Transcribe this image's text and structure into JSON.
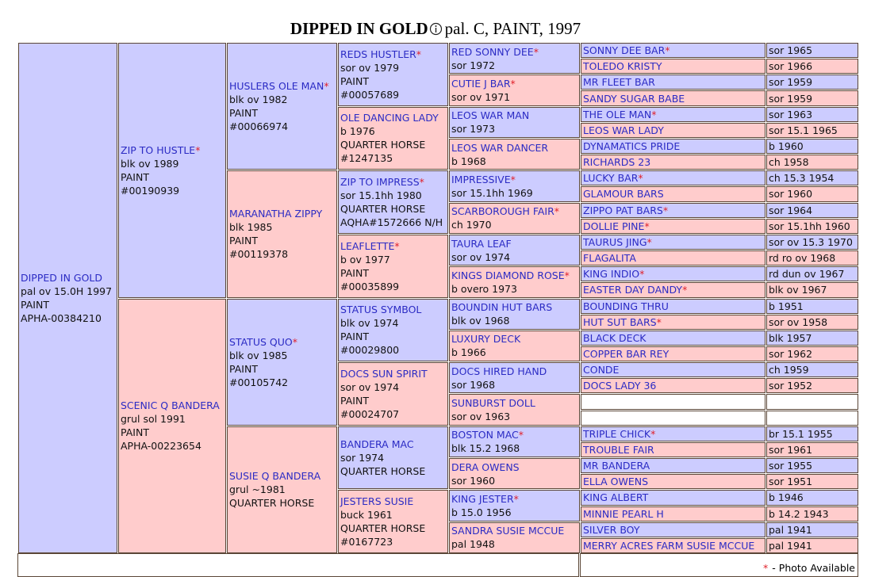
{
  "title": "DIPPED IN GOLD",
  "subtitle": "pal. C, PAINT, 1997",
  "pedigree": {
    "gen1": [
      {
        "name": "DIPPED IN GOLD",
        "lines": [
          "pal ov 15.0H 1997",
          "PAINT",
          "APHA-00384210"
        ]
      }
    ],
    "gen2": [
      {
        "name": "ZIP TO HUSTLE",
        "mark": "*",
        "lines": [
          "blk ov 1989",
          "PAINT",
          "#00190939"
        ]
      },
      {
        "name": "SCENIC Q BANDERA",
        "lines": [
          "grul sol 1991",
          "PAINT",
          "APHA-00223654"
        ]
      }
    ],
    "gen3": [
      {
        "name": "HUSLERS OLE MAN",
        "mark": "*",
        "lines": [
          "blk ov 1982",
          "PAINT",
          "#00066974"
        ]
      },
      {
        "name": "MARANATHA ZIPPY",
        "lines": [
          "blk 1985",
          "PAINT",
          "#00119378"
        ]
      },
      {
        "name": "STATUS QUO",
        "mark": "*",
        "lines": [
          "blk ov 1985",
          "PAINT",
          "#00105742"
        ]
      },
      {
        "name": "SUSIE Q BANDERA",
        "lines": [
          "grul ~1981",
          "QUARTER HORSE"
        ]
      }
    ],
    "gen4": [
      {
        "name": "REDS HUSTLER",
        "mark": "*",
        "lines": [
          "sor ov 1979",
          "PAINT",
          "#00057689"
        ]
      },
      {
        "name": "OLE DANCING LADY",
        "lines": [
          "b 1976",
          "QUARTER HORSE",
          "#1247135"
        ]
      },
      {
        "name": "ZIP TO IMPRESS",
        "mark": "*",
        "lines": [
          "sor 15.1hh 1980",
          "QUARTER HORSE",
          "AQHA#1572666 N/H"
        ]
      },
      {
        "name": "LEAFLETTE",
        "mark": "*",
        "lines": [
          "b ov 1977",
          "PAINT",
          "#00035899"
        ]
      },
      {
        "name": "STATUS SYMBOL",
        "lines": [
          "blk ov 1974",
          "PAINT",
          "#00029800"
        ]
      },
      {
        "name": "DOCS SUN SPIRIT",
        "lines": [
          "sor ov 1974",
          "PAINT",
          "#00024707"
        ]
      },
      {
        "name": "BANDERA MAC",
        "lines": [
          "sor 1974",
          "QUARTER HORSE"
        ]
      },
      {
        "name": "JESTERS SUSIE",
        "lines": [
          "buck 1961",
          "QUARTER HORSE",
          "#0167723"
        ]
      }
    ],
    "gen5": [
      {
        "name": "RED SONNY DEE",
        "mark": "*",
        "lines": [
          "sor 1972"
        ]
      },
      {
        "name": "CUTIE J BAR",
        "mark": "*",
        "lines": [
          "sor ov 1971"
        ]
      },
      {
        "name": "LEOS WAR MAN",
        "lines": [
          "sor 1973"
        ]
      },
      {
        "name": "LEOS WAR DANCER",
        "lines": [
          "b 1968"
        ]
      },
      {
        "name": "IMPRESSIVE",
        "mark": "*",
        "lines": [
          "sor 15.1hh 1969"
        ]
      },
      {
        "name": "SCARBOROUGH FAIR",
        "mark": "*",
        "lines": [
          "ch 1970"
        ]
      },
      {
        "name": "TAURA LEAF",
        "lines": [
          "sor ov 1974"
        ]
      },
      {
        "name": "KINGS DIAMOND ROSE",
        "mark": "*",
        "lines": [
          "b overo 1973"
        ]
      },
      {
        "name": "BOUNDIN HUT BARS",
        "lines": [
          "blk ov 1968"
        ]
      },
      {
        "name": "LUXURY DECK",
        "lines": [
          "b 1966"
        ]
      },
      {
        "name": "DOCS HIRED HAND",
        "lines": [
          "sor 1968"
        ]
      },
      {
        "name": "SUNBURST DOLL",
        "lines": [
          "sor ov 1963"
        ]
      },
      {
        "name": "BOSTON MAC",
        "mark": "*",
        "lines": [
          "blk 15.2 1968"
        ]
      },
      {
        "name": "DERA OWENS",
        "lines": [
          "sor 1960"
        ]
      },
      {
        "name": "KING JESTER",
        "mark": "*",
        "lines": [
          "b 15.0 1956"
        ]
      },
      {
        "name": "SANDRA SUSIE MCCUE",
        "lines": [
          "pal 1948"
        ]
      }
    ],
    "gen6": [
      {
        "name": "SONNY DEE BAR",
        "mark": "*",
        "lines": [
          "sor 1965"
        ]
      },
      {
        "name": "TOLEDO KRISTY",
        "lines": [
          "sor 1966"
        ]
      },
      {
        "name": "MR FLEET BAR",
        "lines": [
          "sor 1959"
        ]
      },
      {
        "name": "SANDY SUGAR BABE",
        "lines": [
          "sor 1959"
        ]
      },
      {
        "name": "THE OLE MAN",
        "mark": "*",
        "lines": [
          "sor 1963"
        ]
      },
      {
        "name": "LEOS WAR LADY",
        "lines": [
          "sor 15.1 1965"
        ]
      },
      {
        "name": "DYNAMATICS PRIDE",
        "lines": [
          "b 1960"
        ]
      },
      {
        "name": "RICHARDS 23",
        "lines": [
          "ch 1958"
        ]
      },
      {
        "name": "LUCKY BAR",
        "mark": "*",
        "lines": [
          "ch 15.3 1954"
        ]
      },
      {
        "name": "GLAMOUR BARS",
        "lines": [
          "sor 1960"
        ]
      },
      {
        "name": "ZIPPO PAT BARS",
        "mark": "*",
        "lines": [
          "sor 1964"
        ]
      },
      {
        "name": "DOLLIE PINE",
        "mark": "*",
        "lines": [
          "sor 15.1hh 1960"
        ]
      },
      {
        "name": "TAURUS JING",
        "mark": "*",
        "lines": [
          "sor ov 15.3 1970"
        ]
      },
      {
        "name": "FLAGALITA",
        "lines": [
          "rd ro ov 1968"
        ]
      },
      {
        "name": "KING INDIO",
        "mark": "*",
        "lines": [
          "rd dun ov 1967"
        ]
      },
      {
        "name": "EASTER DAY DANDY",
        "mark": "*",
        "lines": [
          "blk ov 1967"
        ]
      },
      {
        "name": "BOUNDING THRU",
        "lines": [
          "b 1951"
        ]
      },
      {
        "name": "HUT SUT BARS",
        "mark": "*",
        "lines": [
          "sor ov 1958"
        ]
      },
      {
        "name": "BLACK DECK",
        "lines": [
          "blk 1957"
        ]
      },
      {
        "name": "COPPER BAR REY",
        "lines": [
          "sor 1962"
        ]
      },
      {
        "name": "CONDE",
        "lines": [
          "ch 1959"
        ]
      },
      {
        "name": "DOCS LADY 36",
        "lines": [
          "sor 1952"
        ]
      },
      null,
      null,
      {
        "name": "TRIPLE CHICK",
        "mark": "*",
        "lines": [
          "br 15.1 1955"
        ]
      },
      {
        "name": "TROUBLE FAIR",
        "lines": [
          "sor 1961"
        ]
      },
      {
        "name": "MR BANDERA",
        "lines": [
          "sor 1955"
        ]
      },
      {
        "name": "ELLA OWENS",
        "lines": [
          "sor 1951"
        ]
      },
      {
        "name": "KING ALBERT",
        "lines": [
          "b 1946"
        ]
      },
      {
        "name": "MINNIE PEARL H",
        "lines": [
          "b 14.2 1943"
        ]
      },
      {
        "name": "SILVER BOY",
        "lines": [
          "pal 1941"
        ]
      },
      {
        "name": "MERRY ACRES FARM SUSIE MCCUE",
        "lines": [
          "pal 1941"
        ]
      }
    ]
  },
  "legend": {
    "mark": "*",
    "text": "- Photo Available"
  }
}
